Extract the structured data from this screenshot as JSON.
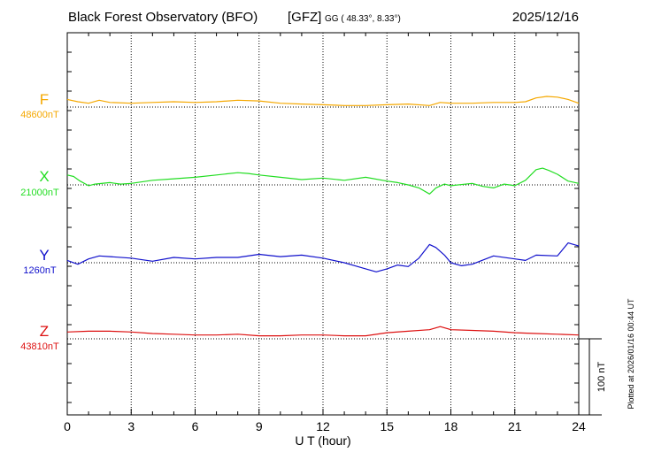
{
  "header": {
    "title": "Black Forest Observatory (BFO)",
    "institute": "[GFZ]",
    "coords": "GG ( 48.33°,   8.33°)",
    "date": "2025/12/16"
  },
  "footer": {
    "plotted_note": "Plotted at 2026/01/16 00:44 UT",
    "scale_label": "100 nT"
  },
  "colors": {
    "F": "#f5a800",
    "X": "#22dd22",
    "Y": "#1010cc",
    "Z": "#dd1010",
    "axis": "#000000",
    "grid": "#000000"
  },
  "chart_data": {
    "type": "line",
    "xlabel": "U T (hour)",
    "xlim": [
      0,
      24
    ],
    "x_ticks": [
      0,
      3,
      6,
      9,
      12,
      15,
      18,
      21,
      24
    ],
    "x_tick_labels": [
      "0",
      "3",
      "6",
      "9",
      "12",
      "15",
      "18",
      "21",
      "24"
    ],
    "scale_bar_nT": 100,
    "units_note": "y values are offsets in nT from each component's baseline",
    "series": [
      {
        "name": "F",
        "baseline_label": "48600nT",
        "baseline_nT": 48600,
        "x": [
          0,
          0.5,
          1,
          1.5,
          2,
          3,
          4,
          5,
          6,
          7,
          8,
          9,
          10,
          11,
          12,
          13,
          14,
          15,
          16,
          17,
          17.5,
          18,
          19,
          20,
          21,
          21.5,
          22,
          22.5,
          23,
          23.5,
          24
        ],
        "y": [
          10,
          7,
          5,
          9,
          6,
          5,
          6,
          7,
          6,
          7,
          9,
          8,
          5,
          4,
          3,
          2,
          2,
          3,
          4,
          2,
          6,
          5,
          5,
          6,
          6,
          7,
          12,
          14,
          13,
          10,
          5
        ]
      },
      {
        "name": "X",
        "baseline_label": "21000nT",
        "baseline_nT": 21000,
        "x": [
          0,
          0.3,
          0.6,
          1,
          1.3,
          2,
          2.5,
          3,
          4,
          5,
          6,
          7,
          8,
          8.5,
          9,
          10,
          11,
          12,
          13,
          14,
          15,
          15.5,
          16,
          16.5,
          17,
          17.3,
          17.7,
          18,
          19,
          19.5,
          20,
          20.5,
          21,
          21.5,
          22,
          22.3,
          22.6,
          23,
          23.5,
          24
        ],
        "y": [
          13,
          11,
          5,
          -1,
          1,
          3,
          1,
          2,
          6,
          8,
          10,
          13,
          16,
          15,
          13,
          10,
          7,
          9,
          6,
          10,
          5,
          3,
          0,
          -4,
          -12,
          -4,
          1,
          -1,
          2,
          -2,
          -4,
          1,
          -1,
          6,
          20,
          22,
          19,
          14,
          5,
          2
        ]
      },
      {
        "name": "Y",
        "baseline_label": "1260nT",
        "baseline_nT": 1260,
        "x": [
          0,
          0.5,
          1,
          1.5,
          2,
          3,
          4,
          5,
          6,
          7,
          8,
          9,
          10,
          11,
          12,
          13,
          13.5,
          14,
          14.5,
          15,
          15.5,
          16,
          16.5,
          17,
          17.3,
          17.7,
          18,
          18.5,
          19,
          20,
          21,
          21.5,
          22,
          23,
          23.5,
          24
        ],
        "y": [
          3,
          -2,
          5,
          9,
          8,
          6,
          2,
          7,
          5,
          7,
          7,
          11,
          8,
          10,
          6,
          0,
          -4,
          -8,
          -12,
          -8,
          -3,
          -5,
          6,
          24,
          20,
          10,
          0,
          -4,
          -2,
          9,
          5,
          3,
          10,
          9,
          26,
          22
        ]
      },
      {
        "name": "Z",
        "baseline_label": "43810nT",
        "baseline_nT": 43810,
        "x": [
          0,
          1,
          2,
          3,
          4,
          5,
          6,
          7,
          8,
          9,
          10,
          11,
          12,
          13,
          14,
          15,
          16,
          17,
          17.5,
          18,
          19,
          20,
          21,
          22,
          23,
          24
        ],
        "y": [
          9,
          10,
          10,
          9,
          7,
          6,
          5,
          5,
          6,
          4,
          4,
          5,
          5,
          4,
          4,
          8,
          10,
          12,
          16,
          12,
          11,
          10,
          8,
          7,
          6,
          5
        ]
      }
    ]
  }
}
